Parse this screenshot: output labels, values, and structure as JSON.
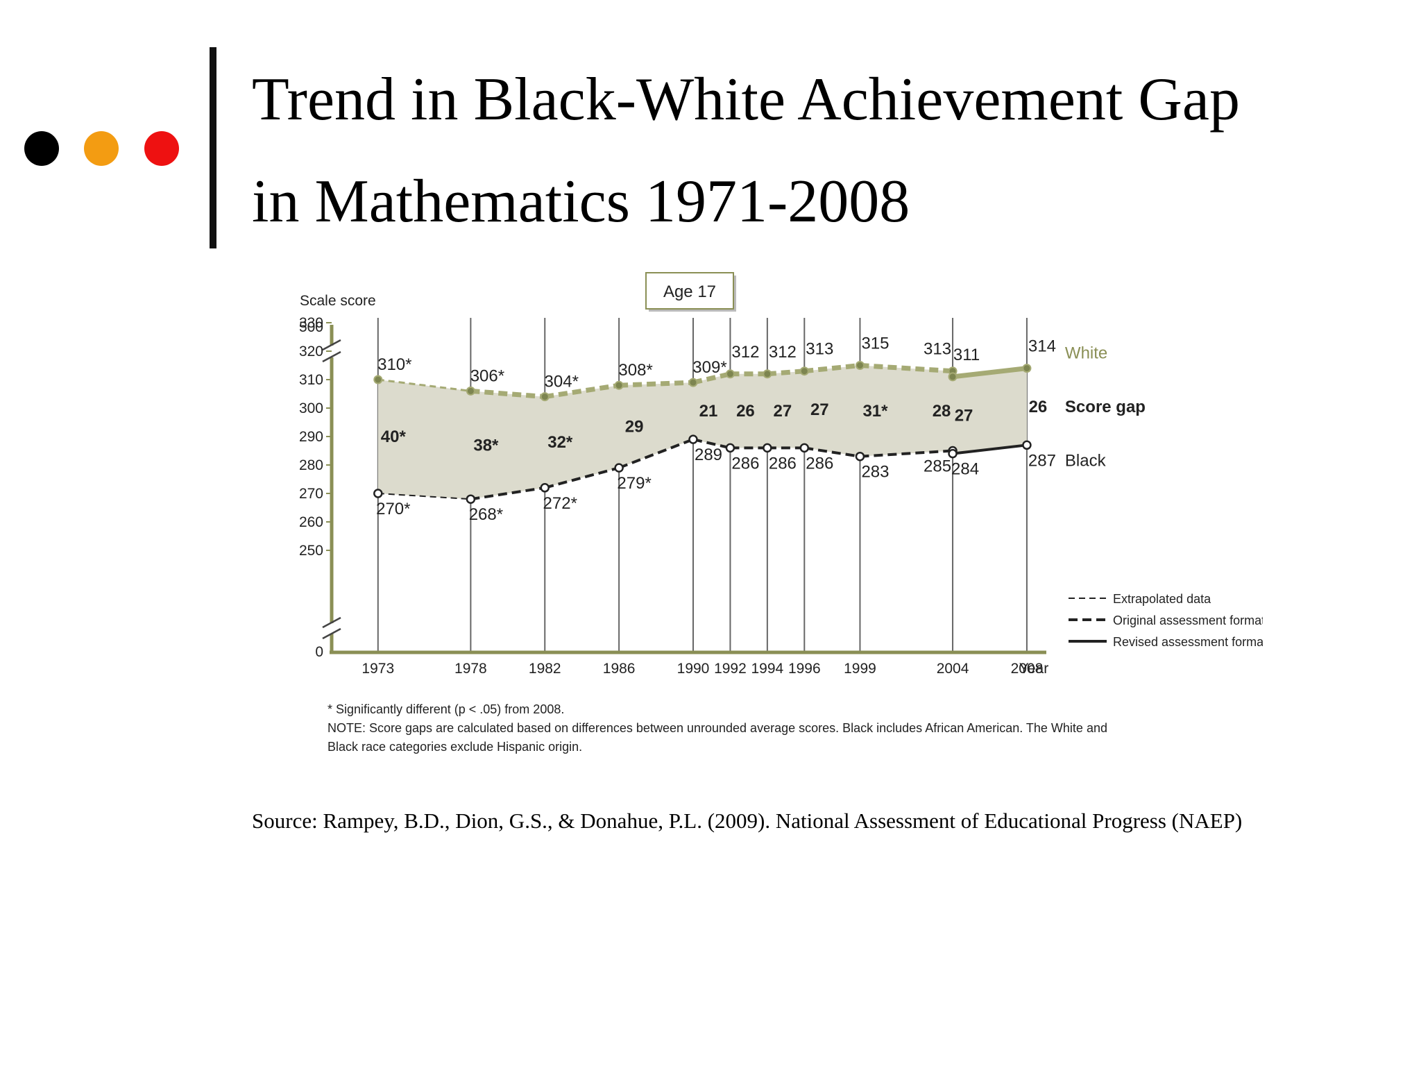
{
  "slide": {
    "title_line1": "Trend in Black-White Achievement Gap",
    "title_line2": "in Mathematics 1971-2008",
    "source": "Source: Rampey, B.D., Dion, G.S., & Donahue, P.L. (2009). National Assessment of Educational Progress (NAEP)",
    "bullet_colors": [
      "#000000",
      "#f39c12",
      "#ee1111"
    ]
  },
  "chart_data": {
    "type": "line",
    "title": "Age 17",
    "ylabel": "Scale score",
    "xlabel": "Year",
    "x": [
      1973,
      1978,
      1982,
      1986,
      1990,
      1992,
      1994,
      1996,
      1999,
      2004,
      2004,
      2008
    ],
    "x_tick_labels": [
      "1973",
      "1978",
      "1982",
      "1986",
      "1990",
      "1992",
      "1994",
      "1996",
      "1999",
      "2004",
      "2008"
    ],
    "y_ticks": [
      250,
      260,
      270,
      280,
      290,
      300,
      310,
      320,
      330
    ],
    "y_break_top": 500,
    "y_zero": 0,
    "ylim": [
      245,
      335
    ],
    "series": [
      {
        "name": "White",
        "color": "#8a8f55",
        "values": [
          310,
          306,
          304,
          308,
          309,
          312,
          312,
          313,
          315,
          313,
          311,
          314
        ],
        "labels": [
          "310*",
          "306*",
          "304*",
          "308*",
          "309*",
          "312",
          "312",
          "313",
          "315",
          "313",
          "311",
          "314"
        ]
      },
      {
        "name": "Black",
        "color": "#222222",
        "values": [
          270,
          268,
          272,
          279,
          289,
          286,
          286,
          286,
          283,
          285,
          284,
          287
        ],
        "labels": [
          "270*",
          "268*",
          "272*",
          "279*",
          "289",
          "286",
          "286",
          "286",
          "283",
          "285",
          "284",
          "287"
        ]
      }
    ],
    "score_gap_name": "Score gap",
    "score_gaps": [
      "40*",
      "38*",
      "32*",
      "29",
      "21",
      "26",
      "27",
      "27",
      "31*",
      "28",
      "27",
      "26"
    ],
    "segment_formats": [
      "extrapolated",
      "original",
      "original",
      "original",
      "original",
      "original",
      "original",
      "original",
      "original",
      "original",
      "revised"
    ],
    "legend": [
      "Extrapolated data",
      "Original assessment format",
      "Revised assessment format"
    ],
    "legend_position": "right",
    "grid": "vertical lines at each assessment year",
    "fill_color": "#dcdbcd",
    "footnote": "* Significantly different (p < .05) from 2008.",
    "note": "NOTE: Score gaps are calculated based on differences between unrounded average scores. Black includes African American. The White and Black race categories exclude Hispanic origin."
  }
}
